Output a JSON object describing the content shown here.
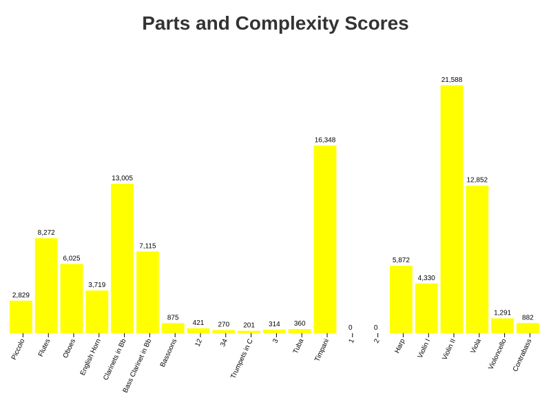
{
  "title": "Parts and Complexity Scores",
  "colors": {
    "bar": "#ffff00",
    "text": "#000000",
    "title": "#333333",
    "background": "#ffffff"
  },
  "chart_data": {
    "type": "bar",
    "title": "Parts and Complexity Scores",
    "xlabel": "",
    "ylabel": "",
    "grid": false,
    "legend": "none",
    "ylim": [
      0,
      22000
    ],
    "categories": [
      "Piccolo",
      "Flutes",
      "Oboes",
      "English Horn",
      "Clarinets in Bb",
      "Bass Clarinet in Bb",
      "Bassoons",
      "12",
      "34",
      "Trumpets in C",
      "3",
      "Tuba",
      "Timpani",
      "1",
      "2",
      "Harp",
      "Violin I",
      "Violin II",
      "Viola",
      "Violoncello",
      "Contrabass"
    ],
    "values": [
      2829,
      8272,
      6025,
      3719,
      13005,
      7115,
      875,
      421,
      270,
      201,
      314,
      360,
      16348,
      0,
      0,
      5872,
      4330,
      21588,
      12852,
      1291,
      882
    ],
    "value_labels": [
      "2,829",
      "8,272",
      "6,025",
      "3,719",
      "13,005",
      "7,115",
      "875",
      "421",
      "270",
      "201",
      "314",
      "360",
      "16,348",
      "0",
      "0",
      "5,872",
      "4,330",
      "21,588",
      "12,852",
      "1,291",
      "882"
    ]
  }
}
